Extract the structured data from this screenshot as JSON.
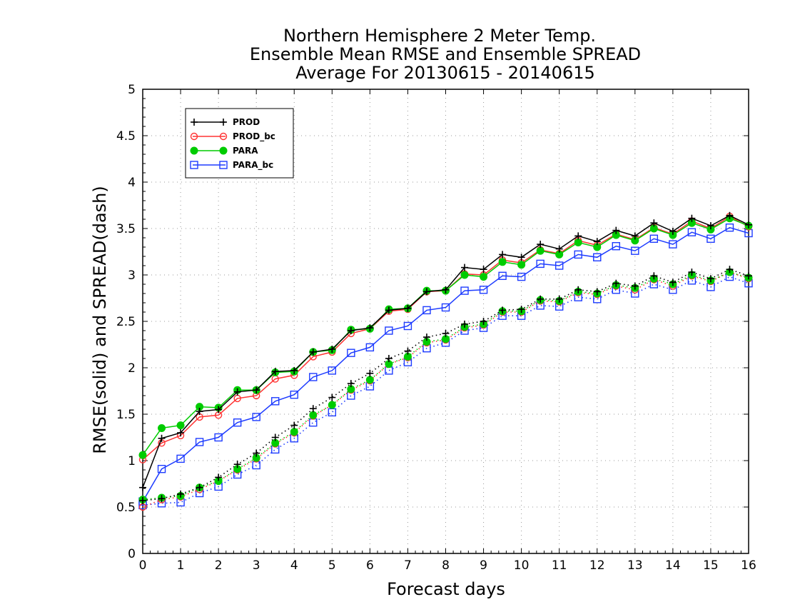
{
  "chart_data": {
    "type": "line",
    "title_lines": [
      "Northern Hemisphere 2 Meter Temp.",
      "Ensemble Mean RMSE and Ensemble SPREAD",
      "Average For 20130615 - 20140615"
    ],
    "xlabel": "Forecast days",
    "ylabel": "RMSE(solid) and SPREAD(dash)",
    "xlim": [
      0,
      16
    ],
    "ylim": [
      0,
      5
    ],
    "x_ticks": [
      "0",
      "1",
      "2",
      "3",
      "4",
      "5",
      "6",
      "7",
      "8",
      "9",
      "10",
      "11",
      "12",
      "13",
      "14",
      "15",
      "16"
    ],
    "y_ticks": [
      "0",
      "0.5",
      "1",
      "1.5",
      "2",
      "2.5",
      "3",
      "3.5",
      "4",
      "4.5",
      "5"
    ],
    "grid": true,
    "legend_position": "top-left",
    "x": [
      0,
      0.5,
      1,
      1.5,
      2,
      2.5,
      3,
      3.5,
      4,
      4.5,
      5,
      5.5,
      6,
      6.5,
      7,
      7.5,
      8,
      8.5,
      9,
      9.5,
      10,
      10.5,
      11,
      11.5,
      12,
      12.5,
      13,
      13.5,
      14,
      14.5,
      15,
      15.5,
      16
    ],
    "series": [
      {
        "name": "PROD",
        "color": "#000000",
        "marker": "plus",
        "rmse": [
          0.71,
          1.24,
          1.3,
          1.53,
          1.55,
          1.74,
          1.76,
          1.96,
          1.97,
          2.17,
          2.2,
          2.4,
          2.43,
          2.62,
          2.64,
          2.82,
          2.84,
          3.08,
          3.06,
          3.22,
          3.19,
          3.33,
          3.28,
          3.42,
          3.36,
          3.48,
          3.42,
          3.56,
          3.47,
          3.61,
          3.53,
          3.64,
          3.54
        ],
        "spread": [
          0.57,
          0.59,
          0.64,
          0.71,
          0.82,
          0.96,
          1.08,
          1.25,
          1.38,
          1.56,
          1.68,
          1.83,
          1.94,
          2.1,
          2.18,
          2.33,
          2.37,
          2.47,
          2.5,
          2.62,
          2.63,
          2.74,
          2.74,
          2.84,
          2.82,
          2.91,
          2.88,
          2.99,
          2.92,
          3.03,
          2.96,
          3.06,
          2.99
        ]
      },
      {
        "name": "PROD_bc",
        "color": "#ff3333",
        "marker": "open-circle",
        "rmse": [
          1.01,
          1.19,
          1.27,
          1.47,
          1.49,
          1.67,
          1.7,
          1.88,
          1.92,
          2.12,
          2.17,
          2.37,
          2.42,
          2.61,
          2.63,
          2.82,
          2.83,
          3.01,
          3.0,
          3.16,
          3.13,
          3.27,
          3.23,
          3.37,
          3.32,
          3.44,
          3.38,
          3.51,
          3.44,
          3.58,
          3.5,
          3.63,
          3.52
        ],
        "spread": [
          0.5,
          0.58,
          0.61,
          0.69,
          0.78,
          0.9,
          1.02,
          1.18,
          1.3,
          1.48,
          1.6,
          1.76,
          1.86,
          2.04,
          2.11,
          2.27,
          2.3,
          2.43,
          2.46,
          2.6,
          2.6,
          2.72,
          2.71,
          2.81,
          2.79,
          2.88,
          2.84,
          2.95,
          2.88,
          2.99,
          2.93,
          3.03,
          2.96
        ]
      },
      {
        "name": "PARA",
        "color": "#00cc00",
        "marker": "filled-circle",
        "rmse": [
          1.06,
          1.35,
          1.38,
          1.58,
          1.57,
          1.76,
          1.76,
          1.95,
          1.96,
          2.17,
          2.19,
          2.41,
          2.42,
          2.63,
          2.64,
          2.83,
          2.83,
          3.0,
          2.98,
          3.14,
          3.11,
          3.26,
          3.22,
          3.35,
          3.3,
          3.43,
          3.37,
          3.5,
          3.43,
          3.56,
          3.49,
          3.61,
          3.53
        ],
        "spread": [
          0.58,
          0.6,
          0.62,
          0.71,
          0.78,
          0.91,
          1.03,
          1.19,
          1.31,
          1.49,
          1.6,
          1.77,
          1.87,
          2.04,
          2.12,
          2.28,
          2.31,
          2.44,
          2.47,
          2.61,
          2.61,
          2.73,
          2.72,
          2.82,
          2.8,
          2.89,
          2.86,
          2.96,
          2.9,
          3.0,
          2.94,
          3.03,
          2.97
        ]
      },
      {
        "name": "PARA_bc",
        "color": "#1e3cff",
        "marker": "open-square",
        "rmse": [
          0.56,
          0.91,
          1.02,
          1.2,
          1.25,
          1.41,
          1.47,
          1.64,
          1.71,
          1.9,
          1.97,
          2.16,
          2.22,
          2.4,
          2.45,
          2.62,
          2.65,
          2.83,
          2.84,
          2.99,
          2.98,
          3.12,
          3.1,
          3.22,
          3.19,
          3.31,
          3.26,
          3.39,
          3.33,
          3.46,
          3.39,
          3.51,
          3.45
        ],
        "spread": [
          0.52,
          0.54,
          0.55,
          0.65,
          0.72,
          0.85,
          0.95,
          1.12,
          1.24,
          1.41,
          1.52,
          1.7,
          1.8,
          1.97,
          2.06,
          2.21,
          2.27,
          2.4,
          2.43,
          2.56,
          2.56,
          2.67,
          2.66,
          2.76,
          2.74,
          2.84,
          2.8,
          2.9,
          2.84,
          2.94,
          2.87,
          2.98,
          2.91
        ]
      }
    ]
  }
}
